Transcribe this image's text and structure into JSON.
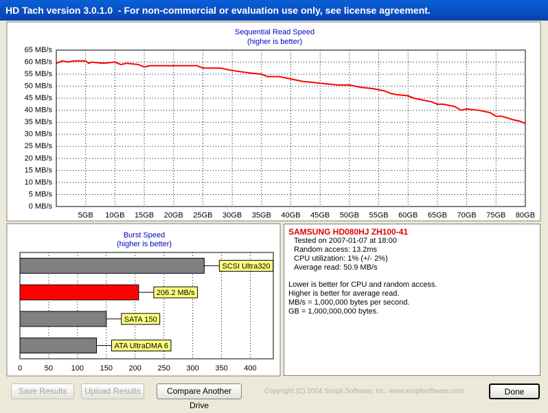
{
  "window": {
    "title": "HD Tach version 3.0.1.0  - For non-commercial or evaluation use only, see license agreement."
  },
  "chart_data": [
    {
      "type": "line",
      "title": "Sequential Read Speed",
      "subtitle": "(higher is better)",
      "color": "#ff0000",
      "grid": true,
      "x": [
        0,
        1,
        2,
        3,
        5,
        5.5,
        6,
        8,
        10,
        11,
        12,
        14,
        15,
        16,
        18,
        20,
        22,
        24,
        25,
        28,
        30,
        33,
        35,
        36,
        38,
        40,
        42,
        44,
        46,
        48,
        50,
        52,
        54,
        56,
        57,
        58,
        60,
        61,
        62,
        64,
        65,
        66,
        68,
        69,
        70,
        72,
        74,
        75,
        76,
        78,
        79,
        80
      ],
      "values": [
        59.5,
        60.5,
        60,
        60.5,
        60.5,
        59.5,
        60,
        59.5,
        60,
        59,
        59.5,
        59,
        58,
        58.5,
        58.5,
        58.5,
        58.5,
        58.5,
        57.5,
        57.5,
        56.5,
        55.5,
        55,
        54,
        54,
        53,
        52,
        51.5,
        51,
        50.5,
        50.5,
        49.5,
        49,
        48,
        47,
        46.5,
        46,
        45,
        44.5,
        43.5,
        42.5,
        42.5,
        41.5,
        40,
        40.5,
        40,
        39,
        37.5,
        37.5,
        36,
        35.5,
        34.5
      ],
      "xlim": [
        0,
        80
      ],
      "xticks": [
        {
          "value": 5,
          "label": "5GB"
        },
        {
          "value": 10,
          "label": "10GB"
        },
        {
          "value": 15,
          "label": "15GB"
        },
        {
          "value": 20,
          "label": "20GB"
        },
        {
          "value": 25,
          "label": "25GB"
        },
        {
          "value": 30,
          "label": "30GB"
        },
        {
          "value": 35,
          "label": "35GB"
        },
        {
          "value": 40,
          "label": "40GB"
        },
        {
          "value": 45,
          "label": "45GB"
        },
        {
          "value": 50,
          "label": "50GB"
        },
        {
          "value": 55,
          "label": "55GB"
        },
        {
          "value": 60,
          "label": "60GB"
        },
        {
          "value": 65,
          "label": "65GB"
        },
        {
          "value": 70,
          "label": "70GB"
        },
        {
          "value": 75,
          "label": "75GB"
        },
        {
          "value": 80,
          "label": "80GB"
        }
      ],
      "ylim": [
        0,
        65
      ],
      "yticks": [
        {
          "value": 0,
          "label": "0 MB/s"
        },
        {
          "value": 5,
          "label": "5 MB/s"
        },
        {
          "value": 10,
          "label": "10 MB/s"
        },
        {
          "value": 15,
          "label": "15 MB/s"
        },
        {
          "value": 20,
          "label": "20 MB/s"
        },
        {
          "value": 25,
          "label": "25 MB/s"
        },
        {
          "value": 30,
          "label": "30 MB/s"
        },
        {
          "value": 35,
          "label": "35 MB/s"
        },
        {
          "value": 40,
          "label": "40 MB/s"
        },
        {
          "value": 45,
          "label": "45 MB/s"
        },
        {
          "value": 50,
          "label": "50 MB/s"
        },
        {
          "value": 55,
          "label": "55 MB/s"
        },
        {
          "value": 60,
          "label": "60 MB/s"
        },
        {
          "value": 65,
          "label": "65 MB/s"
        }
      ]
    },
    {
      "type": "hbar",
      "title": "Burst Speed",
      "subtitle": "(higher is better)",
      "grid": true,
      "categories": [
        "SCSI Ultra320",
        null,
        "SATA 150",
        "ATA UltraDMA 6"
      ],
      "values": [
        320,
        206.2,
        150,
        133
      ],
      "value_labels": [
        null,
        "206.2 MB/s",
        null,
        null
      ],
      "colors": [
        "#808080",
        "#ff0000",
        "#808080",
        "#808080"
      ],
      "xlim": [
        0,
        440
      ],
      "xticks": [
        0,
        50,
        100,
        150,
        200,
        250,
        300,
        350,
        400
      ]
    }
  ],
  "info": {
    "drive": "SAMSUNG HD080HJ ZH100-41",
    "details": [
      "Tested on 2007-01-07 at 18:00",
      "Random access: 13.2ms",
      "CPU utilization: 1% (+/- 2%)",
      "Average read: 50.9 MB/s"
    ],
    "notes": [
      "Lower is better for CPU and random access.",
      "Higher is better for average read.",
      "MB/s = 1,000,000 bytes per second.",
      "GB = 1,000,000,000 bytes."
    ]
  },
  "buttons": {
    "save": "Save Results",
    "upload": "Upload Results",
    "compare": "Compare Another Drive",
    "done": "Done"
  },
  "copyright": "Copyright (C) 2004 Simpli Software, Inc. www.simplisoftware.com"
}
